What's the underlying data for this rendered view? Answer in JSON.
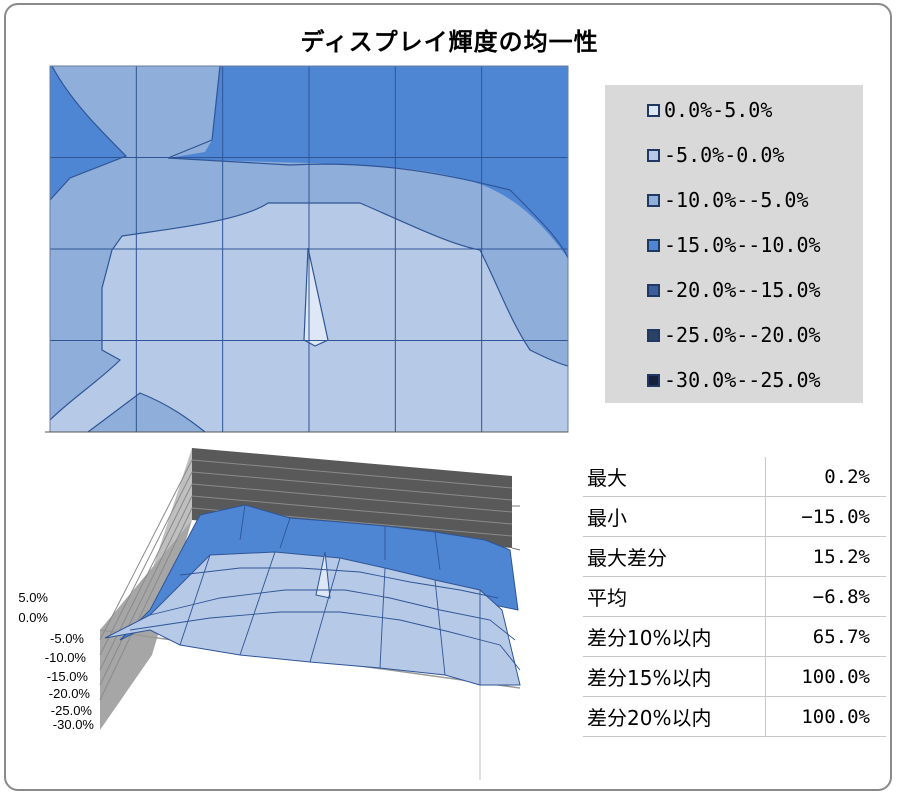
{
  "chart_data": [
    {
      "type": "heatmap",
      "title": "ディスプレイ輝度の均一性",
      "grid": true,
      "columns": 6,
      "rows": 4,
      "legend": {
        "placement": "right",
        "entries": [
          {
            "label": "0.0%-5.0%",
            "color": "#dde7f5"
          },
          {
            "label": "-5.0%-0.0%",
            "color": "#b6c9e6"
          },
          {
            "label": "-10.0%--5.0%",
            "color": "#8faed9"
          },
          {
            "label": "-15.0%--10.0%",
            "color": "#4f86d4"
          },
          {
            "label": "-20.0%--15.0%",
            "color": "#3a5f9a"
          },
          {
            "label": "-25.0%--20.0%",
            "color": "#2a4266"
          },
          {
            "label": "-30.0%--25.0%",
            "color": "#15213a"
          }
        ]
      }
    },
    {
      "type": "area",
      "subtype": "3d-surface",
      "yticks": [
        "5.0%",
        "0.0%",
        "-5.0%",
        "-10.0%",
        "-15.0%",
        "-20.0%",
        "-25.0%",
        "-30.0%"
      ],
      "ylim": [
        -30,
        5
      ],
      "grid": true
    }
  ],
  "stats": [
    {
      "label": "最大",
      "value": "0.2%"
    },
    {
      "label": "最小",
      "value": "−15.0%"
    },
    {
      "label": "最大差分",
      "value": "15.2%"
    },
    {
      "label": "平均",
      "value": "−6.8%"
    },
    {
      "label": "差分10%以内",
      "value": "65.7%"
    },
    {
      "label": "差分15%以内",
      "value": "100.0%"
    },
    {
      "label": "差分20%以内",
      "value": "100.0%"
    }
  ]
}
